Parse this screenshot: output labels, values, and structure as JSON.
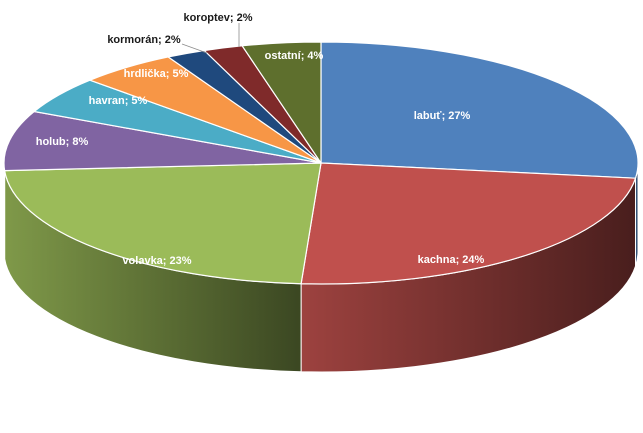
{
  "chart_data": {
    "type": "pie",
    "style": "3d",
    "grid": false,
    "legend": "none",
    "labels": [
      "labuť",
      "kachna",
      "volavka",
      "holub",
      "havran",
      "hrdlička",
      "kormorán",
      "koroptev",
      "ostatní"
    ],
    "values": [
      27,
      24,
      23,
      8,
      5,
      5,
      2,
      2,
      4
    ],
    "data_labels": [
      "labuť; 27%",
      "kachna; 24%",
      "volavka; 23%",
      "holub; 8%",
      "havran; 5%",
      "hrdlička; 5%",
      "kormorán; 2%",
      "koroptev; 2%",
      "ostatní; 4%"
    ],
    "colors": [
      "#4f81bd",
      "#c0504d",
      "#9bbb59",
      "#8064a2",
      "#4bacc6",
      "#f79646",
      "#1f497d",
      "#7f2a2a",
      "#5e6f2d"
    ]
  }
}
